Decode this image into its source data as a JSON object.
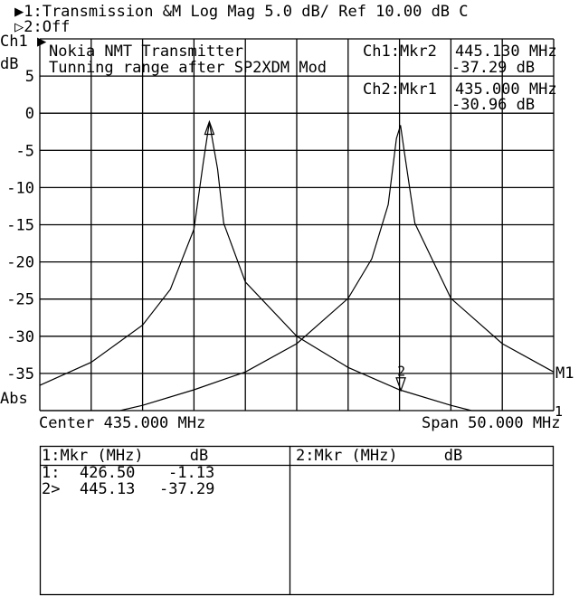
{
  "header": {
    "line1": "▶1:Transmission &M Log Mag  5.0 dB/  Ref  10.00 dB  C",
    "line2": "▷2:Off"
  },
  "axis_labels": {
    "channel": "Ch1 ▶",
    "unit": "dB",
    "format": "Abs",
    "center": "Center 435.000 MHz",
    "span": "Span 50.000 MHz",
    "marker_m1": "M1",
    "ref_marker": "1"
  },
  "annotation": {
    "title1": "Nokia NMT Transmitter",
    "title2": "Tunning range after SP2XDM Mod",
    "mkr_a_label": "Ch1:Mkr2",
    "mkr_a_freq": "445.130 MHz",
    "mkr_a_val": "-37.29 dB",
    "mkr_b_label": "Ch2:Mkr1",
    "mkr_b_freq": "435.000 MHz",
    "mkr_b_val": "-30.96 dB"
  },
  "chart_data": {
    "type": "line",
    "xlabel": "",
    "ylabel": "dB",
    "xlim": [
      410,
      460
    ],
    "ylim": [
      -40,
      10
    ],
    "x_unit": "MHz",
    "grid": true,
    "yticks": [
      5,
      0,
      -5,
      -10,
      -15,
      -20,
      -25,
      -30,
      -35
    ],
    "ytick_labels": [
      "5",
      "0",
      "-5",
      "-10",
      "-15",
      "-20",
      "-25",
      "-30",
      "-35"
    ],
    "series": [
      {
        "x": [
          410,
          415,
          420,
          422.7,
          425,
          425.9,
          426.5,
          427.3,
          427.9,
          430,
          435,
          440,
          445,
          450,
          452,
          460
        ],
        "y": [
          -36.6,
          -33.5,
          -28.5,
          -23.7,
          -15.6,
          -6.7,
          -1.2,
          -7.5,
          -14.8,
          -22.7,
          -30,
          -34.2,
          -37.2,
          -39.3,
          -40,
          -40
        ]
      },
      {
        "x": [
          410,
          417.8,
          420,
          425,
          430,
          435,
          440,
          442.3,
          443.9,
          444.7,
          445.1,
          445.5,
          446.5,
          450,
          455,
          460
        ],
        "y": [
          -40,
          -40,
          -39.3,
          -37.2,
          -34.8,
          -31,
          -24.9,
          -19.6,
          -12.3,
          -3.4,
          -1.6,
          -5.5,
          -14.8,
          -24.9,
          -31,
          -34.8
        ]
      }
    ],
    "markers": [
      {
        "label": "1",
        "x": 426.5,
        "y": -1.13,
        "shape": "up-triangle"
      },
      {
        "label": "2",
        "x": 445.13,
        "y": -37.29,
        "shape": "down-triangle"
      }
    ]
  },
  "marker_table": {
    "left_header": "1:Mkr (MHz)     dB",
    "right_header": "2:Mkr (MHz)     dB",
    "rows": [
      {
        "id": "1:",
        "freq": "426.50",
        "val": "-1.13"
      },
      {
        "id": "2>",
        "freq": "445.13",
        "val": "-37.29"
      }
    ]
  }
}
